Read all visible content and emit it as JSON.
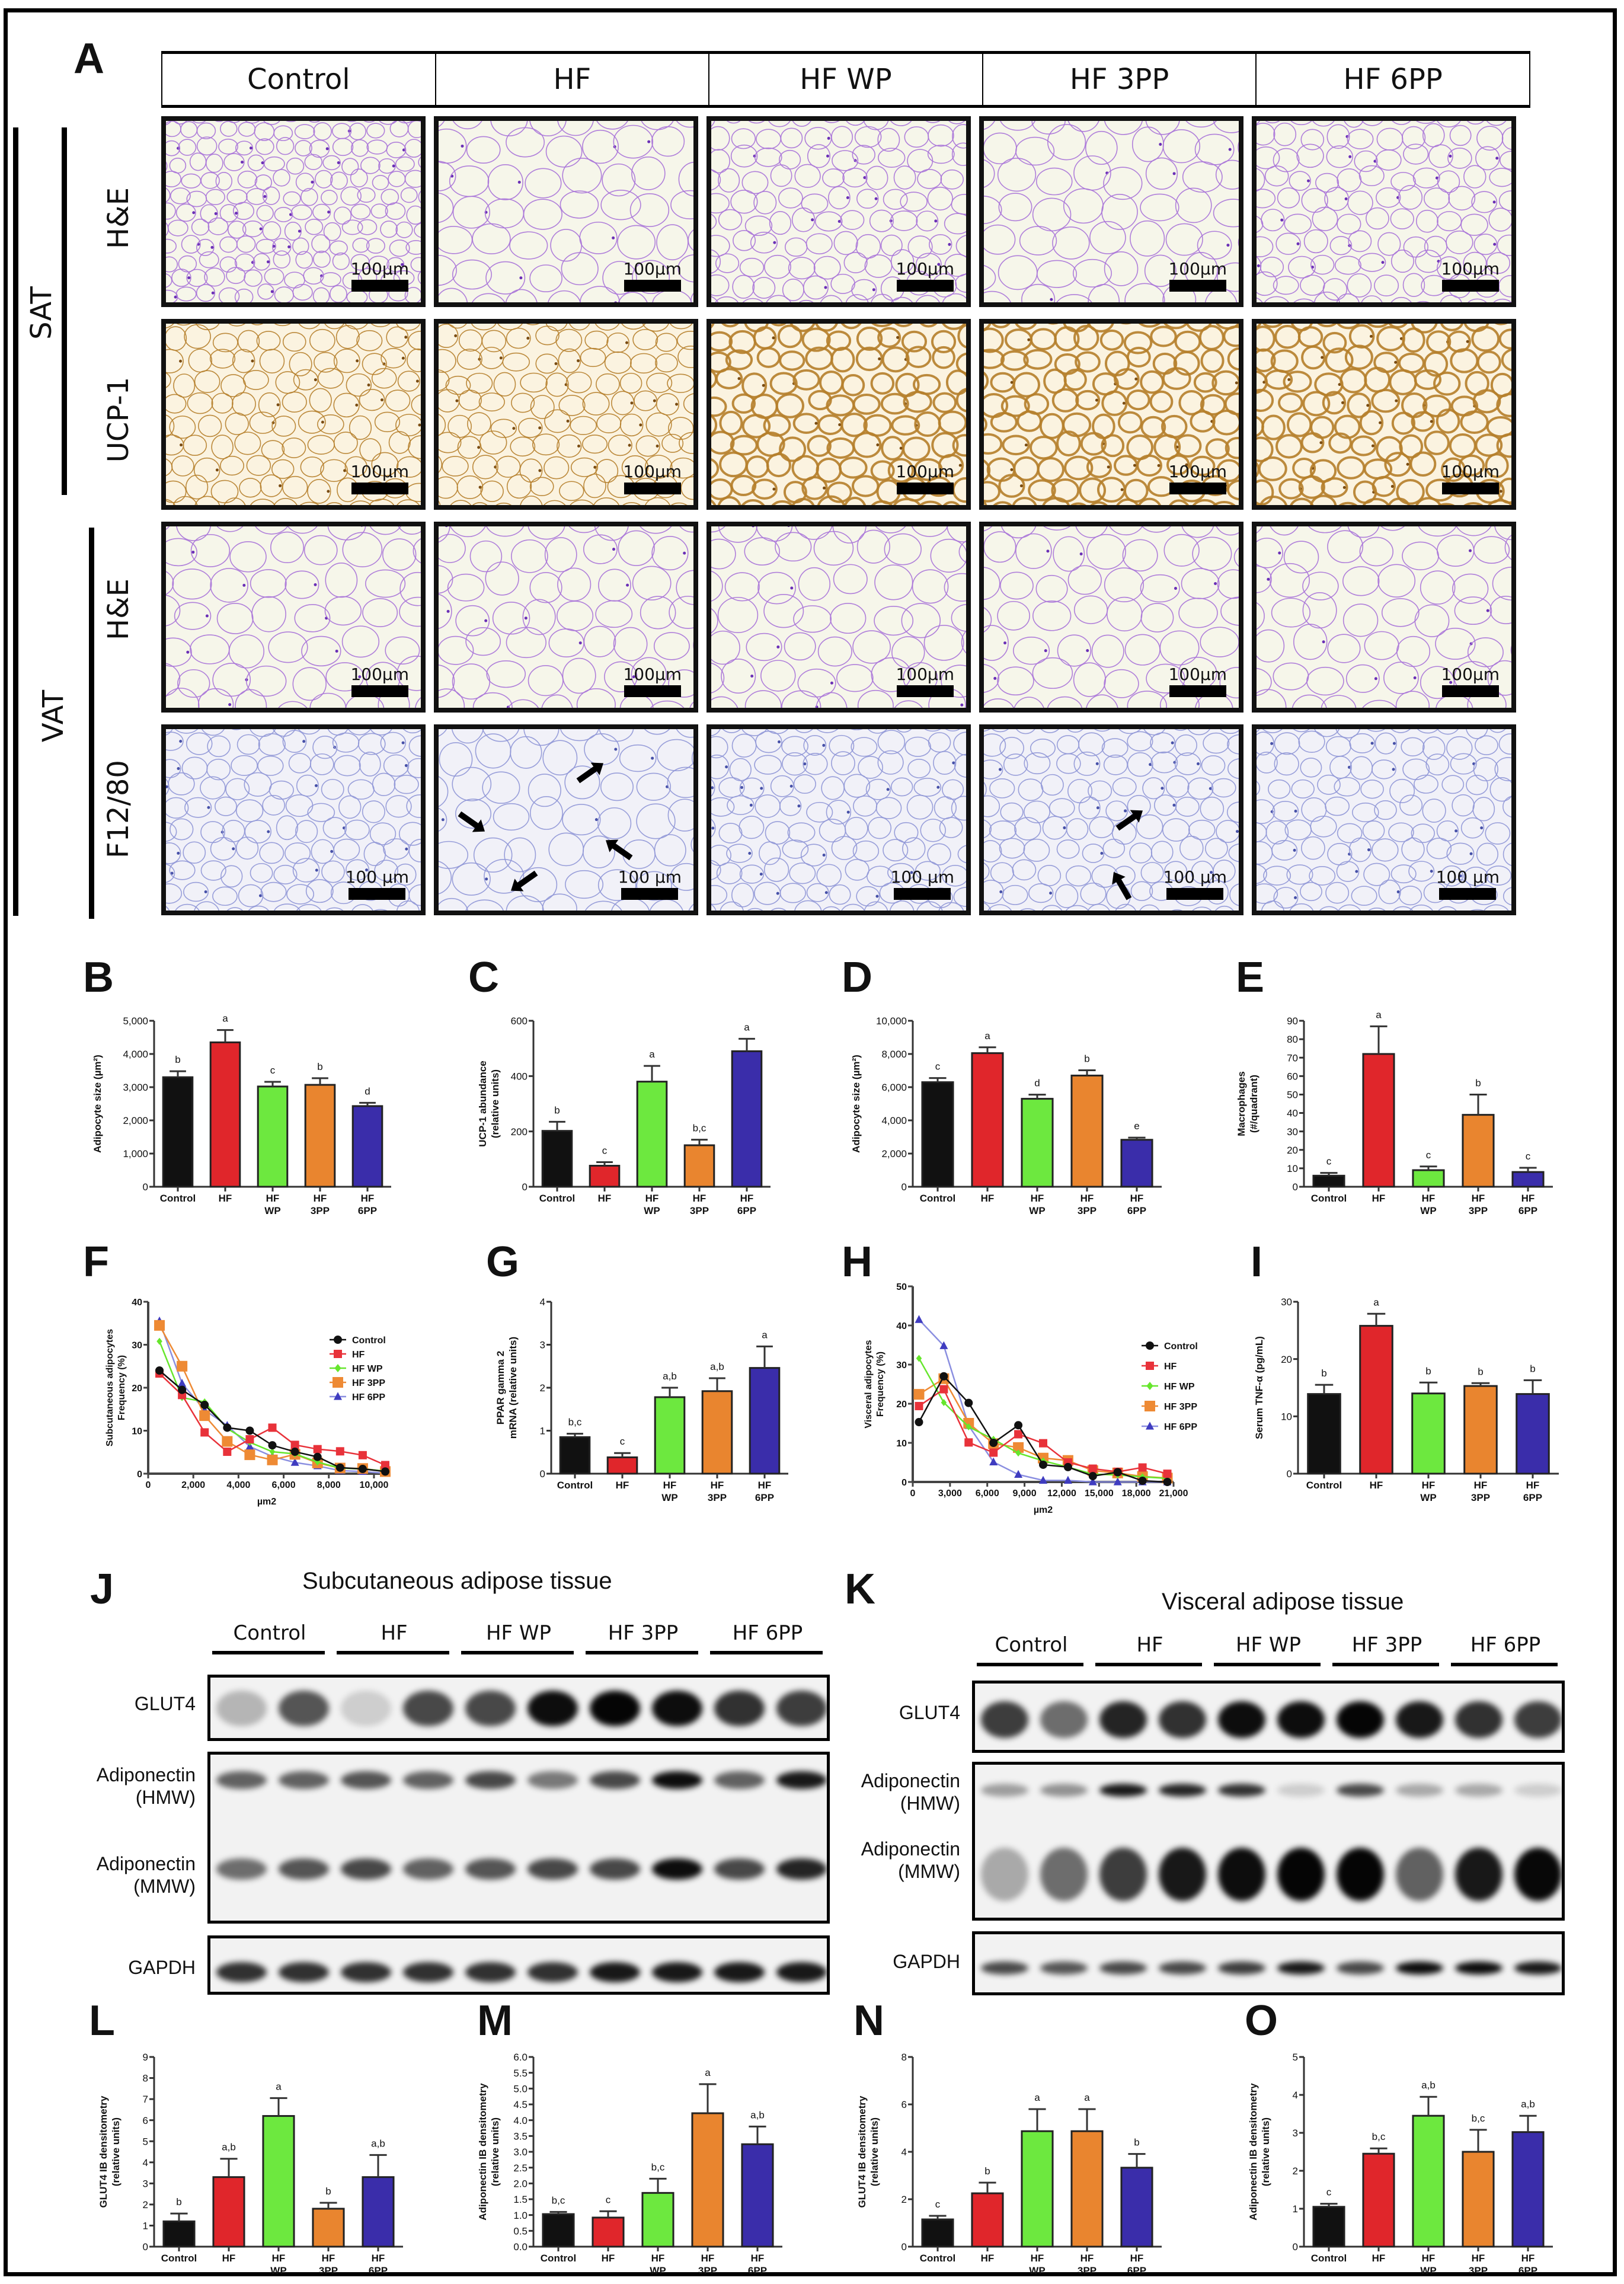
{
  "figure": {
    "groups": [
      "Control",
      "HF",
      "HF WP",
      "HF 3PP",
      "HF 6PP"
    ],
    "group_ticks": [
      [
        "Control"
      ],
      [
        "HF"
      ],
      [
        "HF",
        "WP"
      ],
      [
        "HF",
        "3PP"
      ],
      [
        "HF",
        "6PP"
      ]
    ],
    "colors": {
      "Control": "#111111",
      "HF": "#e0262b",
      "HF WP": "#6de83f",
      "HF 3PP": "#e9852f",
      "HF 6PP": "#3a2daa"
    },
    "panel_letters": {
      "A": "A",
      "B": "B",
      "C": "C",
      "D": "D",
      "E": "E",
      "F": "F",
      "G": "G",
      "H": "H",
      "I": "I",
      "J": "J",
      "K": "K",
      "L": "L",
      "M": "M",
      "N": "N",
      "O": "O"
    }
  },
  "panel_a": {
    "column_headers": [
      "Control",
      "HF",
      "HF WP",
      "HF 3PP",
      "HF 6PP"
    ],
    "tissue_labels": {
      "sat": "SAT",
      "vat": "VAT"
    },
    "rows": [
      {
        "stain": "H&E",
        "tissue": "SAT",
        "scale_label": "100µm",
        "color": "purple"
      },
      {
        "stain": "UCP-1",
        "tissue": "SAT",
        "scale_label": "100µm",
        "color": "brown"
      },
      {
        "stain": "H&E",
        "tissue": "VAT",
        "scale_label": "100µm",
        "color": "purple"
      },
      {
        "stain": "F12/80",
        "tissue": "VAT",
        "scale_label": "100 µm",
        "color": "blue"
      }
    ],
    "arrows_note": "Black arrows indicate crown-like macrophage structures (HF: 4, HF 3PP: 2)"
  },
  "panel_j": {
    "title": "Subcutaneous adipose tissue",
    "groups": [
      "Control",
      "HF",
      "HF WP",
      "HF 3PP",
      "HF 6PP"
    ],
    "blots": [
      "GLUT4",
      "Adiponectin\n(HMW)",
      "Adiponectin\n(MMW)",
      "GAPDH"
    ],
    "labels": {
      "glut4": "GLUT4",
      "adipo_hmw_1": "Adiponectin",
      "adipo_hmw_2": "(HMW)",
      "adipo_mmw_1": "Adiponectin",
      "adipo_mmw_2": "(MMW)",
      "gapdh": "GAPDH"
    }
  },
  "panel_k": {
    "title": "Visceral adipose tissue",
    "groups": [
      "Control",
      "HF",
      "HF WP",
      "HF 3PP",
      "HF 6PP"
    ],
    "labels": {
      "glut4": "GLUT4",
      "adipo_hmw_1": "Adiponectin",
      "adipo_hmw_2": "(HMW)",
      "adipo_mmw_1": "Adiponectin",
      "adipo_mmw_2": "(MMW)",
      "gapdh": "GAPDH"
    }
  },
  "chart_data": [
    {
      "panel": "B",
      "type": "bar",
      "title": "",
      "xlabel": "",
      "ylabel": "Adipocyte size (µm²)",
      "categories": [
        "Control",
        "HF",
        "HF WP",
        "HF 3PP",
        "HF 6PP"
      ],
      "values": [
        3300,
        4350,
        3020,
        3070,
        2430
      ],
      "errors": [
        180,
        370,
        140,
        200,
        100
      ],
      "letters": [
        "b",
        "a",
        "c",
        "b",
        "d"
      ],
      "ylim": [
        0,
        5000
      ],
      "yticks": [
        0,
        1000,
        2000,
        3000,
        4000,
        5000
      ],
      "ytick_labels": [
        "0",
        "1,000",
        "2,000",
        "3,000",
        "4,000",
        "5,000"
      ]
    },
    {
      "panel": "C",
      "type": "bar",
      "ylabel": "UCP-1 abundance\n(relative units)",
      "categories": [
        "Control",
        "HF",
        "HF WP",
        "HF 3PP",
        "HF 6PP"
      ],
      "values": [
        202,
        76,
        380,
        150,
        490
      ],
      "errors": [
        33,
        13,
        57,
        20,
        45
      ],
      "letters": [
        "b",
        "c",
        "a",
        "b,c",
        "a"
      ],
      "ylim": [
        0,
        600
      ],
      "yticks": [
        0,
        200,
        400,
        600
      ],
      "ytick_labels": [
        "0",
        "200",
        "400",
        "600"
      ]
    },
    {
      "panel": "D",
      "type": "bar",
      "ylabel": "Adipocyte size (µm²)",
      "categories": [
        "Control",
        "HF",
        "HF WP",
        "HF 3PP",
        "HF 6PP"
      ],
      "values": [
        6300,
        8050,
        5300,
        6700,
        2830
      ],
      "errors": [
        250,
        350,
        250,
        320,
        130
      ],
      "letters": [
        "c",
        "a",
        "d",
        "b",
        "e"
      ],
      "ylim": [
        0,
        10000
      ],
      "yticks": [
        0,
        2000,
        4000,
        6000,
        8000,
        10000
      ],
      "ytick_labels": [
        "0",
        "2,000",
        "4,000",
        "6,000",
        "8,000",
        "10,000"
      ]
    },
    {
      "panel": "E",
      "type": "bar",
      "ylabel": "Macrophages\n(#/quadrant)",
      "categories": [
        "Control",
        "HF",
        "HF WP",
        "HF 3PP",
        "HF 6PP"
      ],
      "values": [
        6,
        72,
        9,
        39,
        8
      ],
      "errors": [
        1.5,
        15,
        2,
        11,
        2.3
      ],
      "letters": [
        "c",
        "a",
        "c",
        "b",
        "c"
      ],
      "ylim": [
        0,
        90
      ],
      "yticks": [
        0,
        10,
        20,
        30,
        40,
        50,
        60,
        70,
        80,
        90
      ],
      "ytick_labels": [
        "0",
        "10",
        "20",
        "30",
        "40",
        "50",
        "60",
        "70",
        "80",
        "90"
      ]
    },
    {
      "panel": "F",
      "type": "line",
      "ylabel": "Subcutaneous adipocytes\nFrequency (%)",
      "xlabel": "µm2",
      "x": [
        500,
        1500,
        2500,
        3500,
        4500,
        5500,
        6500,
        7500,
        8500,
        9500,
        10500
      ],
      "xlim": [
        0,
        10500
      ],
      "xticks": [
        0,
        2000,
        4000,
        6000,
        8000,
        10000
      ],
      "xtick_labels": [
        "0",
        "2,000",
        "4,000",
        "6,000",
        "8,000",
        "10,000"
      ],
      "ylim": [
        0,
        40
      ],
      "yticks": [
        0,
        10,
        20,
        30,
        40
      ],
      "ytick_labels": [
        "0",
        "10",
        "20",
        "30",
        "40"
      ],
      "legend": [
        "Control",
        "HF",
        "HF WP",
        "HF 3PP",
        "HF 6PP"
      ],
      "legend_position": "upper right",
      "series": [
        {
          "name": "Control",
          "marker": "circle",
          "values": [
            24,
            19.5,
            16,
            10.7,
            10,
            6.6,
            5.1,
            3.9,
            1.4,
            1.1,
            0.5
          ]
        },
        {
          "name": "HF",
          "marker": "square",
          "values": [
            23.3,
            18.3,
            9.6,
            5.1,
            8,
            10.7,
            6.7,
            5.7,
            5.2,
            4.3,
            2
          ]
        },
        {
          "name": "HF WP",
          "marker": "diamond",
          "values": [
            30.8,
            17.7,
            16.7,
            10.5,
            7.3,
            5.1,
            4.6,
            2.7,
            1.3,
            1.1,
            0.6
          ]
        },
        {
          "name": "HF 3PP",
          "marker": "square",
          "values": [
            34.5,
            25,
            13.5,
            7.5,
            4.4,
            3.2,
            4.5,
            2.5,
            1.3,
            1.2,
            0.5
          ]
        },
        {
          "name": "HF 6PP",
          "marker": "triangle",
          "values": [
            35.5,
            21,
            14.8,
            11.2,
            6.3,
            4,
            2.6,
            1.8,
            0.7,
            0.5,
            0.1
          ]
        }
      ]
    },
    {
      "panel": "G",
      "type": "bar",
      "ylabel": "PPAR gamma 2\nmRNA (relative units)",
      "categories": [
        "Control",
        "HF",
        "HF WP",
        "HF 3PP",
        "HF 6PP"
      ],
      "values": [
        0.85,
        0.38,
        1.78,
        1.92,
        2.46
      ],
      "errors": [
        0.08,
        0.1,
        0.22,
        0.3,
        0.5
      ],
      "letters": [
        "b,c",
        "c",
        "a,b",
        "a,b",
        "a"
      ],
      "ylim": [
        0,
        4
      ],
      "yticks": [
        0,
        1,
        2,
        3,
        4
      ],
      "ytick_labels": [
        "0",
        "1",
        "2",
        "3",
        "4"
      ]
    },
    {
      "panel": "H",
      "type": "line",
      "ylabel": "Visceral adipocytes\nFrequency (%)",
      "xlabel": "µm2",
      "x": [
        500,
        2500,
        4500,
        6500,
        8500,
        10500,
        12500,
        14500,
        16500,
        18500,
        20500
      ],
      "xlim": [
        0,
        21000
      ],
      "xticks": [
        0,
        3000,
        6000,
        9000,
        12000,
        15000,
        18000,
        21000
      ],
      "xtick_labels": [
        "0",
        "3,000",
        "6,000",
        "9,000",
        "12,000",
        "15,000",
        "18,000",
        "21,000"
      ],
      "ylim": [
        0,
        50
      ],
      "yticks": [
        0,
        10,
        20,
        30,
        40,
        50
      ],
      "ytick_labels": [
        "0",
        "10",
        "20",
        "30",
        "40",
        "50"
      ],
      "legend": [
        "Control",
        "HF",
        "HF WP",
        "HF 3PP",
        "HF 6PP"
      ],
      "legend_position": "upper right",
      "series": [
        {
          "name": "Control",
          "marker": "circle",
          "values": [
            15.3,
            27,
            20.2,
            10,
            14.5,
            4.4,
            3.8,
            1.5,
            2.5,
            0.3,
            0
          ]
        },
        {
          "name": "HF",
          "marker": "square",
          "values": [
            19.4,
            23.7,
            10.1,
            7.5,
            12.2,
            9.9,
            5,
            3.4,
            2.6,
            3.7,
            2.1
          ]
        },
        {
          "name": "HF WP",
          "marker": "diamond",
          "values": [
            31.6,
            20.3,
            14.1,
            10.9,
            7.4,
            5.4,
            3.8,
            2,
            1.8,
            1.3,
            0.9
          ]
        },
        {
          "name": "HF 3PP",
          "marker": "square",
          "values": [
            22.4,
            26.4,
            15,
            9.8,
            8.8,
            6.1,
            5.5,
            2.9,
            2.3,
            1.4,
            1
          ]
        },
        {
          "name": "HF 6PP",
          "marker": "triangle",
          "values": [
            41.5,
            34.8,
            14.4,
            5.1,
            1.9,
            0.4,
            0.4,
            0,
            0,
            0,
            0
          ]
        }
      ]
    },
    {
      "panel": "I",
      "type": "bar",
      "ylabel": "Serum TNF-α (pg/mL)",
      "categories": [
        "Control",
        "HF",
        "HF WP",
        "HF 3PP",
        "HF 6PP"
      ],
      "values": [
        13.9,
        25.8,
        14,
        15.3,
        13.9
      ],
      "errors": [
        1.6,
        2.1,
        1.9,
        0.5,
        2.4
      ],
      "letters": [
        "b",
        "a",
        "b",
        "b",
        "b"
      ],
      "ylim": [
        0,
        30
      ],
      "yticks": [
        0,
        10,
        20,
        30
      ],
      "ytick_labels": [
        "0",
        "10",
        "20",
        "30"
      ]
    },
    {
      "panel": "L",
      "type": "bar",
      "ylabel": "GLUT4 IB densitometry\n(relative units)",
      "categories": [
        "Control",
        "HF",
        "HF WP",
        "HF 3PP",
        "HF 6PP"
      ],
      "values": [
        1.2,
        3.3,
        6.2,
        1.8,
        3.3
      ],
      "errors": [
        0.37,
        0.87,
        0.85,
        0.28,
        1.05
      ],
      "letters": [
        "b",
        "a,b",
        "a",
        "b",
        "a,b"
      ],
      "ylim": [
        0,
        9
      ],
      "yticks": [
        0,
        1,
        2,
        3,
        4,
        5,
        6,
        7,
        8,
        9
      ],
      "ytick_labels": [
        "0",
        "1",
        "2",
        "3",
        "4",
        "5",
        "6",
        "7",
        "8",
        "9"
      ]
    },
    {
      "panel": "M",
      "type": "bar",
      "ylabel": "Adiponectin IB densitometry\n(relative units)",
      "categories": [
        "Control",
        "HF",
        "HF WP",
        "HF 3PP",
        "HF 6PP"
      ],
      "values": [
        1.03,
        0.92,
        1.7,
        4.22,
        3.24
      ],
      "errors": [
        0.07,
        0.2,
        0.45,
        0.92,
        0.56
      ],
      "letters": [
        "b,c",
        "c",
        "b,c",
        "a",
        "a,b"
      ],
      "ylim": [
        0,
        6
      ],
      "yticks": [
        0,
        0.5,
        1,
        1.5,
        2,
        2.5,
        3,
        3.5,
        4,
        4.5,
        5,
        5.5,
        6
      ],
      "ytick_labels": [
        "0.0",
        "0.5",
        "1.0",
        "1.5",
        "2.0",
        "2.5",
        "3.0",
        "3.5",
        "4.0",
        "4.5",
        "5.0",
        "5.5",
        "6.0"
      ]
    },
    {
      "panel": "N",
      "type": "bar",
      "ylabel": "GLUT4 IB densitometry\n(relative units)",
      "categories": [
        "Control",
        "HF",
        "HF WP",
        "HF 3PP",
        "HF 6PP"
      ],
      "values": [
        1.15,
        2.25,
        4.87,
        4.87,
        3.33
      ],
      "errors": [
        0.15,
        0.45,
        0.93,
        0.93,
        0.58
      ],
      "letters": [
        "c",
        "b",
        "a",
        "a",
        "b"
      ],
      "ylim": [
        0,
        8
      ],
      "yticks": [
        0,
        2,
        4,
        6,
        8
      ],
      "ytick_labels": [
        "0",
        "2",
        "4",
        "6",
        "8"
      ]
    },
    {
      "panel": "O",
      "type": "bar",
      "ylabel": "Adiponectin IB densitometry\n(relative units)",
      "categories": [
        "Control",
        "HF",
        "HF WP",
        "HF 3PP",
        "HF 6PP"
      ],
      "values": [
        1.05,
        2.45,
        3.45,
        2.5,
        3.02
      ],
      "errors": [
        0.08,
        0.14,
        0.5,
        0.58,
        0.43
      ],
      "letters": [
        "c",
        "b,c",
        "a,b",
        "b,c",
        "a,b"
      ],
      "ylim": [
        0,
        5
      ],
      "yticks": [
        0,
        1,
        2,
        3,
        4,
        5
      ],
      "ytick_labels": [
        "0",
        "1",
        "2",
        "3",
        "4",
        "5"
      ]
    }
  ]
}
